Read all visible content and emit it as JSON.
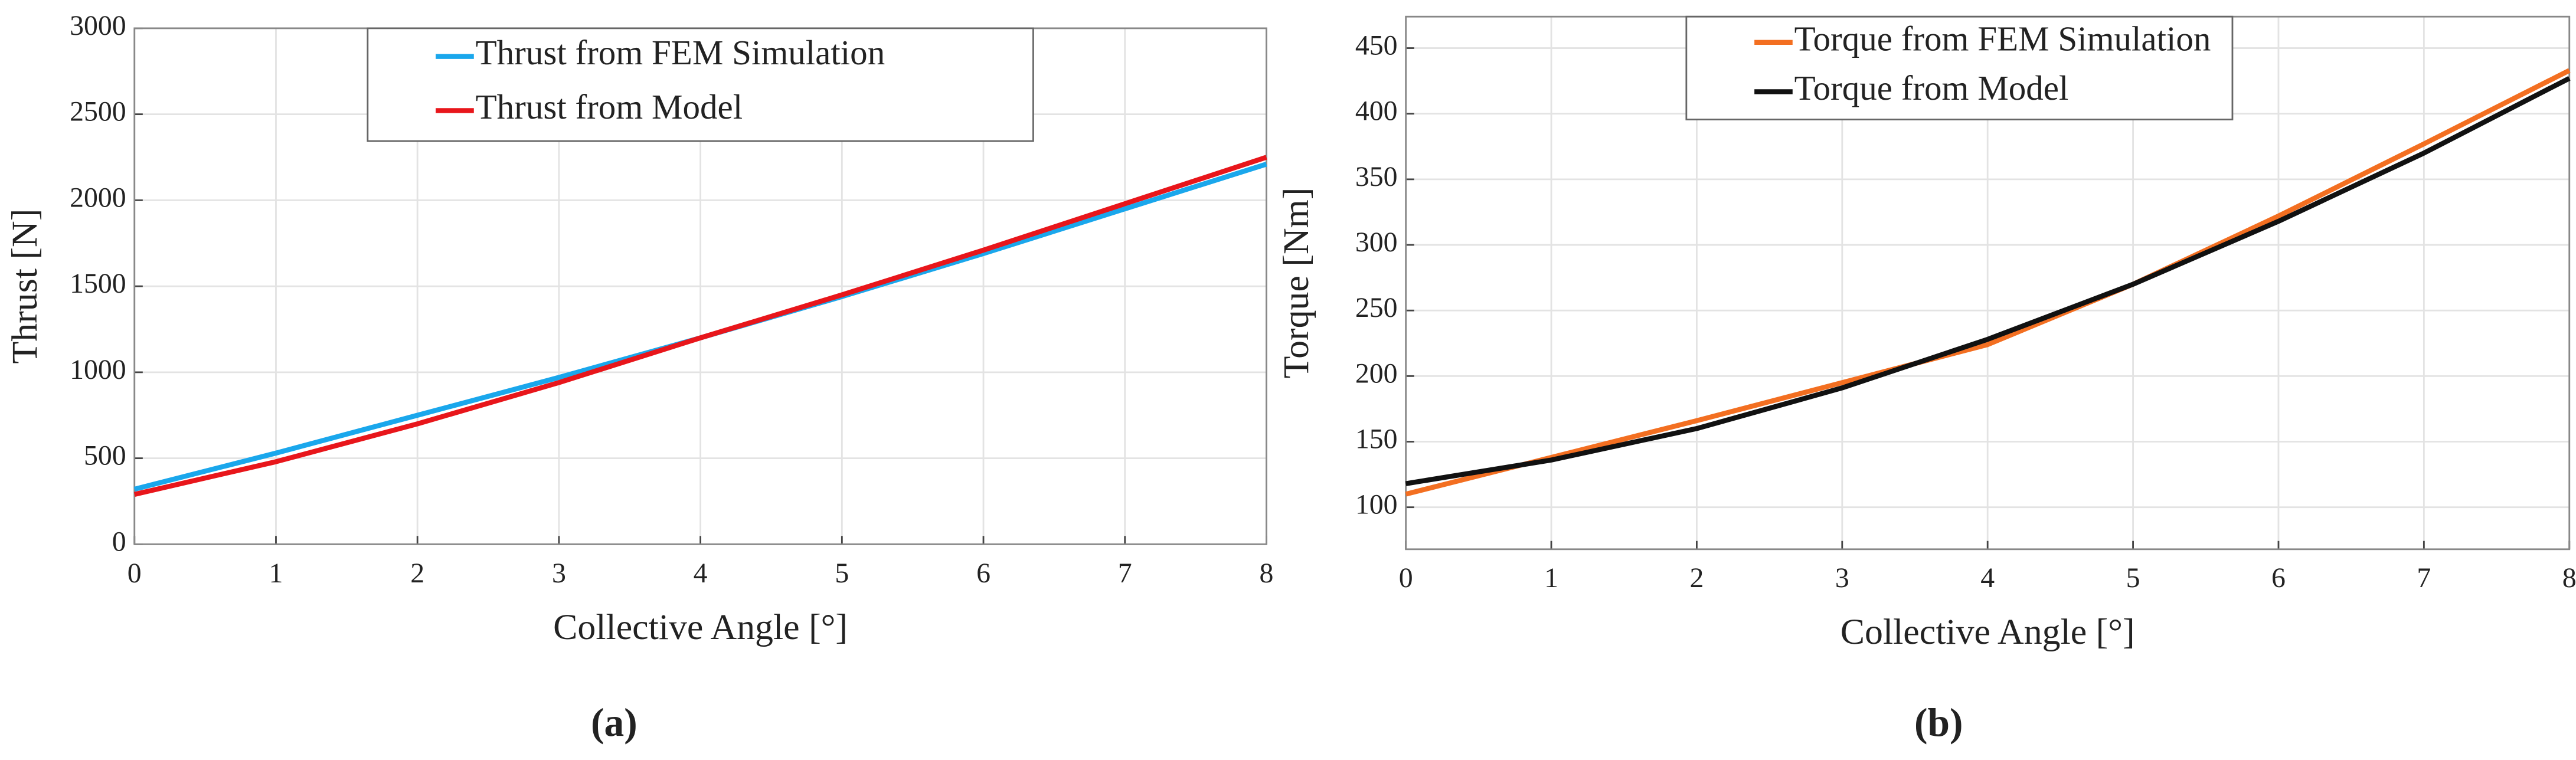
{
  "chart_data": [
    {
      "type": "line",
      "panel_label": "(a)",
      "xlabel": "Collective Angle [°]",
      "ylabel": "Thrust [N]",
      "x": [
        0,
        1,
        2,
        3,
        4,
        5,
        6,
        7,
        8
      ],
      "series": [
        {
          "name": "Thrust from FEM Simulation",
          "color": "#1aa7ec",
          "values": [
            320,
            530,
            750,
            970,
            1200,
            1440,
            1690,
            1950,
            2210
          ]
        },
        {
          "name": "Thrust from Model",
          "color": "#e8161b",
          "values": [
            290,
            480,
            700,
            940,
            1200,
            1450,
            1710,
            1980,
            2250
          ]
        }
      ],
      "xlim": [
        0,
        8
      ],
      "xticks": [
        0,
        1,
        2,
        3,
        4,
        5,
        6,
        7,
        8
      ],
      "ylim": [
        0,
        3000
      ],
      "yticks": [
        0,
        500,
        1000,
        1500,
        2000,
        2500,
        3000
      ],
      "grid": true,
      "legend": "upper center"
    },
    {
      "type": "line",
      "panel_label": "(b)",
      "xlabel": "Collective Angle [°]",
      "ylabel": "Torque [Nm]",
      "x": [
        0,
        1,
        2,
        3,
        4,
        5,
        6,
        7,
        8
      ],
      "series": [
        {
          "name": "Torque from FEM Simulation",
          "color": "#f36f21",
          "values": [
            110,
            138,
            166,
            195,
            224,
            270,
            322,
            377,
            433
          ]
        },
        {
          "name": "Torque from Model",
          "color": "#111111",
          "values": [
            118,
            136,
            160,
            191,
            228,
            270,
            318,
            370,
            427
          ]
        }
      ],
      "xlim": [
        0,
        8
      ],
      "xticks": [
        0,
        1,
        2,
        3,
        4,
        5,
        6,
        7,
        8
      ],
      "ylim": [
        68,
        474
      ],
      "yticks": [
        100,
        150,
        200,
        250,
        300,
        350,
        400,
        450
      ],
      "grid": true,
      "legend": "upper left"
    }
  ]
}
